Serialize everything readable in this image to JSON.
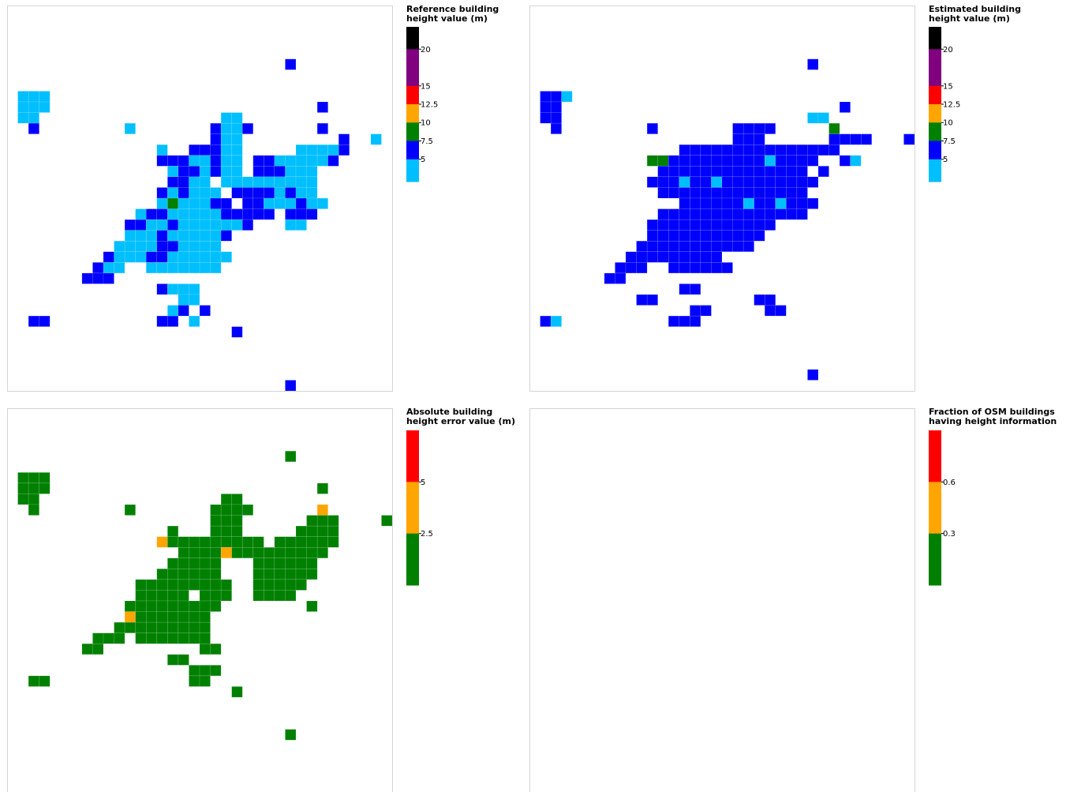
{
  "panels": [
    {
      "id": "reference",
      "colorbar": {
        "title": "Reference building\nheight value (m)",
        "bands": [
          {
            "color": "#000000"
          },
          {
            "color": "#800080"
          },
          {
            "color": "#ff0000"
          },
          {
            "color": "#ffa500"
          },
          {
            "color": "#008000"
          },
          {
            "color": "#0000ff"
          },
          {
            "color": "#00bfff"
          }
        ],
        "ticks": [
          "20",
          "15",
          "12.5",
          "10",
          "7.5",
          "5"
        ]
      },
      "color_key": {
        "L": "#00bfff",
        "B": "#0000ff",
        "G": "#008000",
        "O": "#ffa500"
      },
      "grid": [
        "....................................",
        "....................................",
        "....................................",
        "....................................",
        "....................................",
        "..........................B.........",
        "....................................",
        "....................................",
        ".LLL................................",
        ".LLL.........................B......",
        ".LL.................LL..............",
        "..B........L.......BLLB......B......",
        "...................BLL.........B..L.",
        "..............L..BBBLL.....LLLLB....",
        "..............BBBLLBLL.BBLLLLLB.....",
        "...............LBBLBLL.BBBLLL.......",
        "...............BBLL.LLLLLLLLL.......",
        "..............BLBLLL.BBBBLBLL.......",
        "..............LGLLLBB.BBLLLBLL......",
        "............LBBLLLLLBBBBB.BBB.......",
        "...........BBLLBLLLLLLB...LL........",
        "...........LLLBLLLLLB...............",
        "..........LLLLBBLLLL................",
        ".........BLLLBBLLLLLL...............",
        "........BLL..LLLLLLL................",
        ".......BBB..........................",
        "..............BLLL..................",
        "................LL..................",
        "...............LB.B.................",
        "..BB..........BB.L..................",
        ".....................B..............",
        "....................................",
        "....................................",
        "....................................",
        "....................................",
        "..........................B.........",
        "...................................."
      ]
    },
    {
      "id": "estimated",
      "colorbar": {
        "title": "Estimated building\nheight value (m)",
        "bands": [
          {
            "color": "#000000"
          },
          {
            "color": "#800080"
          },
          {
            "color": "#ff0000"
          },
          {
            "color": "#ffa500"
          },
          {
            "color": "#008000"
          },
          {
            "color": "#0000ff"
          },
          {
            "color": "#00bfff"
          }
        ],
        "ticks": [
          "20",
          "15",
          "12.5",
          "10",
          "7.5",
          "5"
        ]
      },
      "color_key": {
        "L": "#00bfff",
        "B": "#0000ff",
        "G": "#008000",
        "O": "#ffa500"
      },
      "grid": [
        "....................................",
        "....................................",
        "....................................",
        "....................................",
        "....................................",
        "..........................B.........",
        "....................................",
        "....................................",
        ".BBL................................",
        ".BB..........................B......",
        ".BB.......................LL........",
        "..B........B.......BBBB.....G.......",
        "...................BBB......BBBB...B",
        "..............BBBBBBBBBBBBBBB.......",
        "...........GGBBBBBBBBBLBBBB..BL.....",
        "............BBBBBBBBBBBBBB.B........",
        "...........BBBLBBLBBBBBBBBB.........",
        "............BBBBBBBBBBBBBB..........",
        "..............BBBBBBLBBLBBB.........",
        "............BBBBBBBBBBBBBB..........",
        "...........BBBBBBBBBBBB.............",
        "...........BBBBBBBBBBB..............",
        "..........BBBBBBBBBBB...............",
        ".........BBBBBBBBB..................",
        "........BBB..BBBBBB.................",
        ".......BB...........................",
        "..............BB....................",
        "..........BB.........BB.............",
        "...............BB.....BB............",
        ".BL..........BBB....................",
        "....................................",
        "....................................",
        "....................................",
        "....................................",
        "..........................B.........",
        "....................................",
        "...................................."
      ]
    },
    {
      "id": "error",
      "colorbar": {
        "title": "Absolute building\nheight error value (m)",
        "bands": [
          {
            "color": "#ff0000"
          },
          {
            "color": "#ffa500"
          },
          {
            "color": "#008000"
          }
        ],
        "ticks": [
          "5",
          "2.5"
        ]
      },
      "color_key": {
        "L": "#00bfff",
        "B": "#0000ff",
        "G": "#008000",
        "O": "#ffa500"
      },
      "grid": [
        "....................................",
        "....................................",
        "....................................",
        "....................................",
        "..........................G.........",
        "....................................",
        ".GGG................................",
        ".GGG.........................G......",
        ".GG.................GG..............",
        "..G........G.......GGGG......O......",
        "...................GGG......GGG....G",
        "...............G...GGG.....GGGG.....",
        "..............OGGGGGGGGG.GGGGGG.....",
        "................GGGGOGGGGGGGGG......",
        "...............GGGGG...GGGGGG.......",
        "..............GGGGGG...GGGGGG.......",
        "............GGGGGGGGG..GGGGG........",
        "............GGGGG.GGG..GGGG.........",
        "...........GGGGGGGGG........G.......",
        "...........OGGGGGGG.................",
        "..........GGGGGGGGG.................",
        "........GGG.GGGGGGG.................",
        ".......GG.........GG................",
        "...............GG...................",
        ".................GGG................",
        "..GG.............GG.................",
        ".....................G..............",
        "....................................",
        "....................................",
        "....................................",
        "..........................G.........",
        "....................................",
        "....................................",
        "....................................",
        "....................................",
        "....................................",
        "...................................."
      ]
    },
    {
      "id": "fraction",
      "colorbar": {
        "title": "Fraction of OSM buildings\nhaving height information",
        "bands": [
          {
            "color": "#ff0000"
          },
          {
            "color": "#ffa500"
          },
          {
            "color": "#008000"
          }
        ],
        "ticks": [
          "0.6",
          "0.3"
        ]
      },
      "color_key": {},
      "grid": []
    }
  ]
}
